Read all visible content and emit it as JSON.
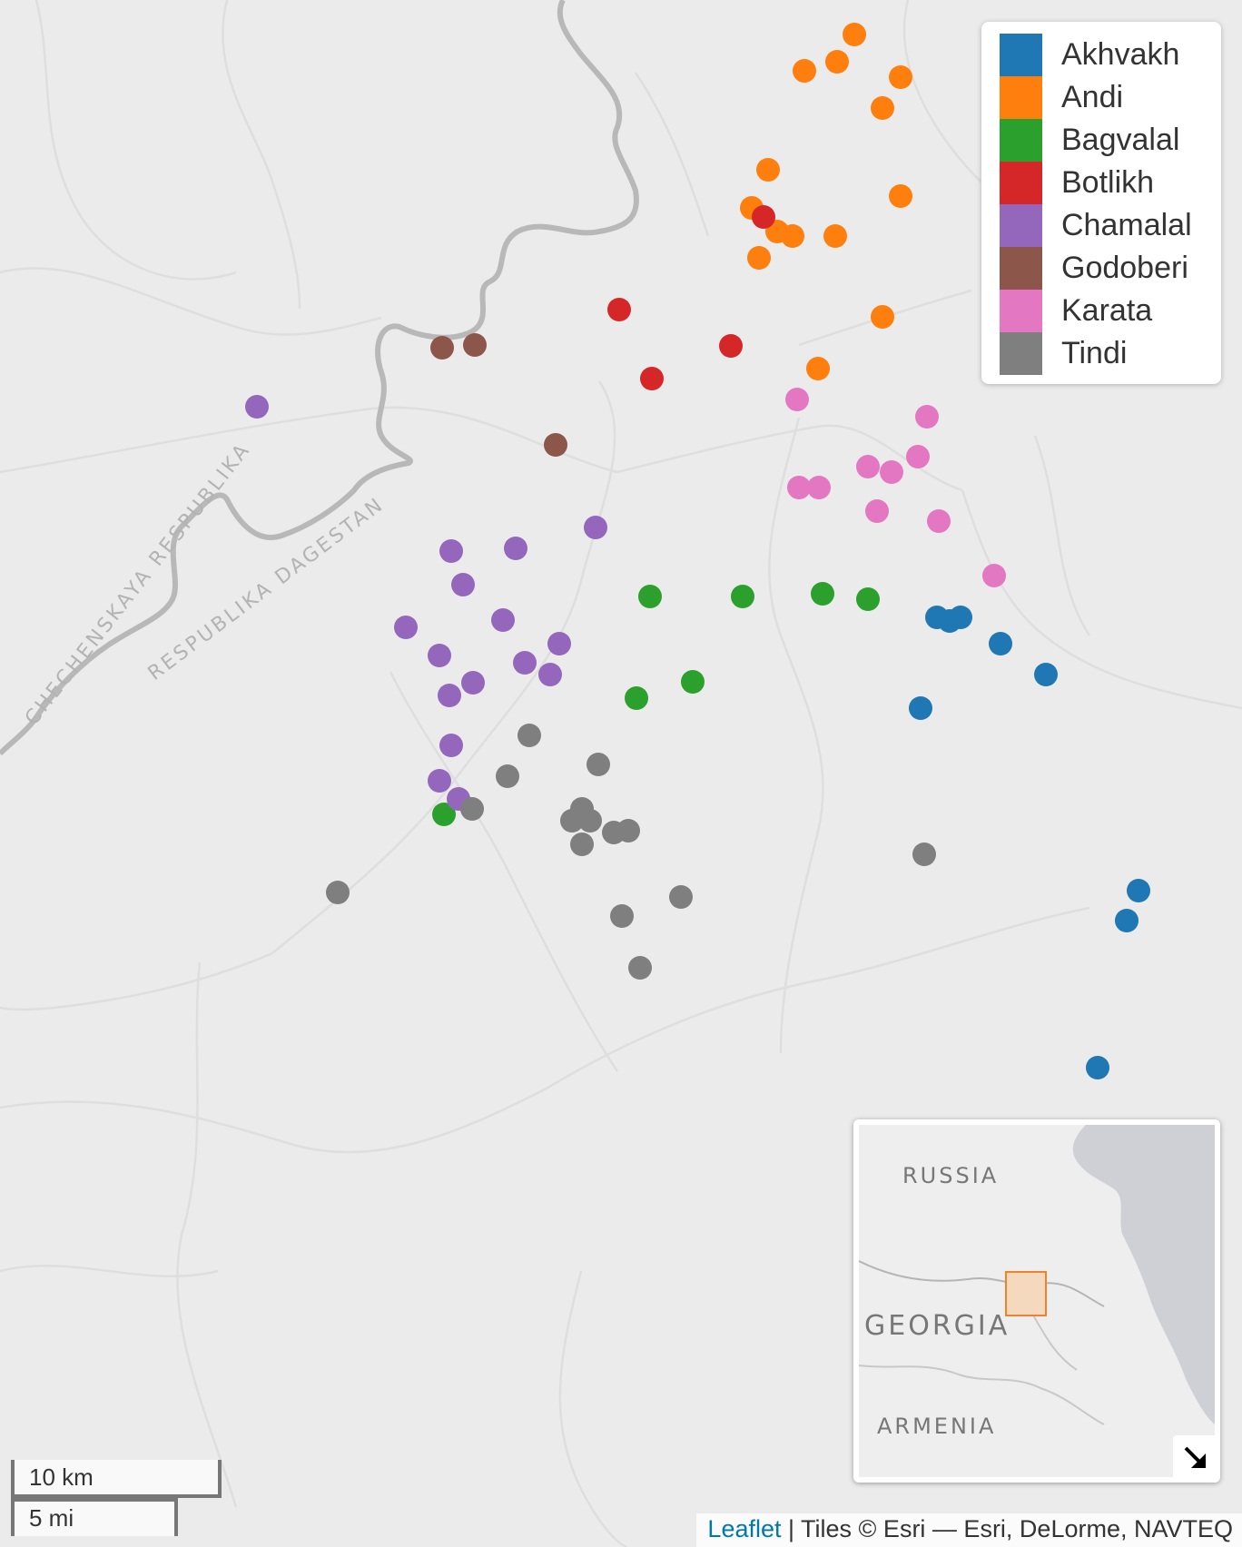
{
  "legend": {
    "items": [
      {
        "label": "Akhvakh",
        "color": "#1f77b4"
      },
      {
        "label": "Andi",
        "color": "#ff7f0e"
      },
      {
        "label": "Bagvalal",
        "color": "#2ca02c"
      },
      {
        "label": "Botlikh",
        "color": "#d62728"
      },
      {
        "label": "Chamalal",
        "color": "#9467bd"
      },
      {
        "label": "Godoberi",
        "color": "#8c564b"
      },
      {
        "label": "Karata",
        "color": "#e377c2"
      },
      {
        "label": "Tindi",
        "color": "#7f7f7f"
      }
    ]
  },
  "map_labels": {
    "chechnya": "CHECHENSKAYA RESPUBLIKA",
    "dagestan": "RESPUBLIKA DAGESTAN"
  },
  "minimap": {
    "russia": "RUSSIA",
    "georgia": "GEORGIA",
    "armenia": "ARMENIA",
    "toggle_icon": "collapse-arrow-icon"
  },
  "scale": {
    "metric": "10 km",
    "imperial": "5 mi"
  },
  "attribution": {
    "leaflet": "Leaflet",
    "tiles": " | Tiles © Esri — Esri, DeLorme, NAVTEQ"
  },
  "colors": {
    "land": "#ebebeb",
    "border": "#b5b5b5",
    "river": "#d6d6d6",
    "sea": "#cfd0d6",
    "region_box": "#f0822a"
  }
}
